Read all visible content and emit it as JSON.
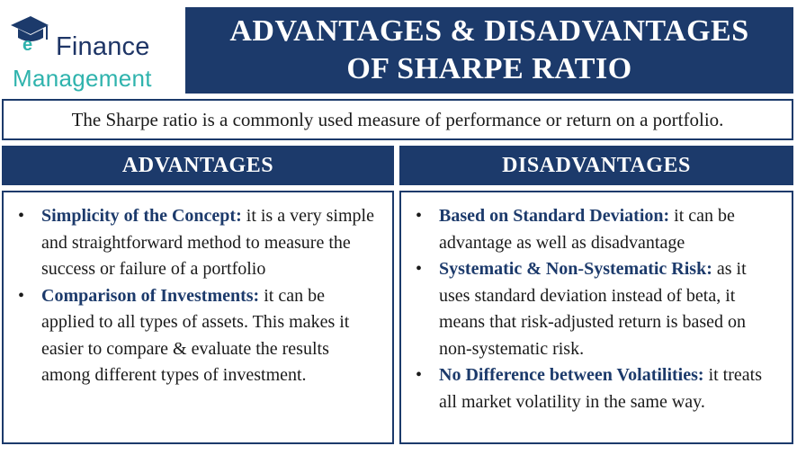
{
  "logo": {
    "line1": "Finance",
    "line2": "Management",
    "icon": "graduation-cap-e-icon"
  },
  "title": {
    "line1": "ADVANTAGES & DISADVANTAGES",
    "line2": "OF SHARPE RATIO"
  },
  "intro": "The Sharpe ratio is a commonly used measure of performance or return on a portfolio.",
  "advantages": {
    "header": "ADVANTAGES",
    "items": [
      {
        "bold": "Simplicity of the Concept:",
        "text": " it is a very simple and straightforward method to measure the success or failure of a portfolio"
      },
      {
        "bold": "Comparison of Investments:",
        "text": " it can be applied to all types of assets. This makes it easier to compare & evaluate the results among different types of investment."
      }
    ]
  },
  "disadvantages": {
    "header": "DISADVANTAGES",
    "items": [
      {
        "bold": "Based on Standard Deviation:",
        "text": " it can be advantage as well as disadvantage"
      },
      {
        "bold": "Systematic & Non-Systematic Risk:",
        "text": " as it uses standard deviation instead of beta, it means that risk-adjusted return is based on non-systematic risk."
      },
      {
        "bold": "No Difference between Volatilities:",
        "text": " it treats all market volatility in the same way."
      }
    ]
  },
  "colors": {
    "navy": "#1c3a6b",
    "teal": "#2fb3ad"
  }
}
